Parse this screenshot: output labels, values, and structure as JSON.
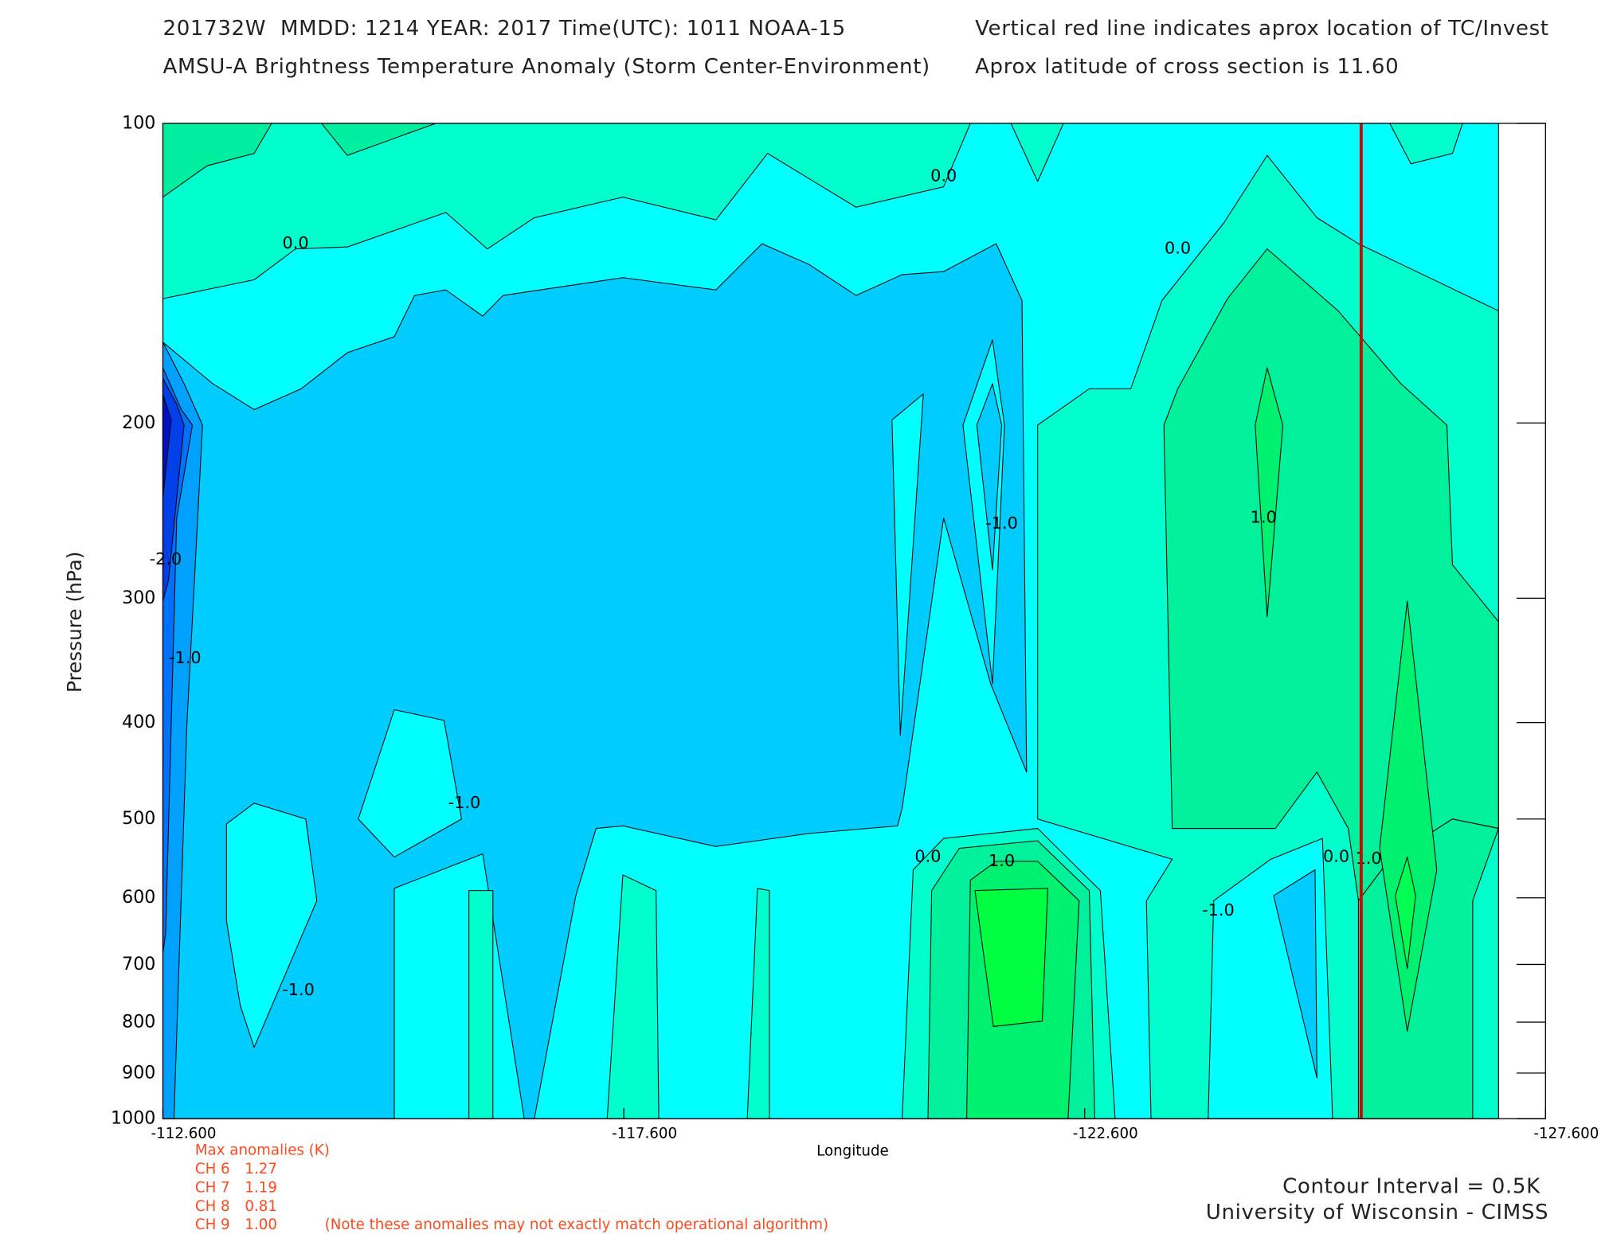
{
  "chart_data": {
    "type": "contour",
    "title_lines": [
      "201732W  MMDD: 1214 YEAR: 2017 Time(UTC): 1011 NOAA-15",
      "AMSU-A Brightness Temperature Anomaly (Storm Center-Environment)"
    ],
    "notes": [
      "Vertical red line indicates aprox location of TC/Invest",
      "Aprox latitude of cross section is 11.60"
    ],
    "x_label": "Longitude",
    "y_label": "Pressure (hPa)",
    "xlim": [
      -112.6,
      -127.6
    ],
    "xticks": [
      {
        "value": -112.6,
        "label": "-112.600"
      },
      {
        "value": -117.6,
        "label": "-117.600"
      },
      {
        "value": -122.6,
        "label": "-122.600"
      },
      {
        "value": -127.6,
        "label": "-127.600"
      }
    ],
    "ylim": [
      1000,
      100
    ],
    "log_y": true,
    "yticks": [
      100,
      200,
      300,
      400,
      500,
      600,
      700,
      800,
      900,
      1000
    ],
    "grid": false,
    "storm_line": {
      "lon": -125.6,
      "color": "#dd0000"
    },
    "regions": [
      {
        "value": -0.5,
        "color": "#00ffff",
        "lon": [
          -112.6,
          -127.09,
          -127.09,
          -112.6
        ],
        "p": [
          100,
          100,
          1000,
          1000
        ]
      },
      {
        "value": 0.0,
        "color": "#00ffcc",
        "lon": [
          -112.6,
          -121.36,
          -121.07,
          -120.12,
          -119.16,
          -118.6,
          -117.59,
          -116.63,
          -116.12,
          -115.67,
          -114.6,
          -114.04,
          -113.59,
          -112.6
        ],
        "p": [
          100,
          100,
          115.8,
          121.4,
          107.2,
          125,
          118.6,
          124.4,
          133.7,
          122.9,
          133.1,
          133.7,
          143.6,
          150
        ]
      },
      {
        "value": 0.5,
        "color": "#00eea0",
        "lon": [
          -112.6,
          -113.78,
          -113.59,
          -113.08,
          -112.6
        ],
        "p": [
          100,
          100,
          107.2,
          110.3,
          118.6
        ]
      },
      {
        "value": 0.5,
        "color": "#00eea0",
        "lon": [
          -114.32,
          -115.56,
          -114.6
        ],
        "p": [
          100,
          100,
          107.7
        ]
      },
      {
        "value": 0.0,
        "color": "#00ffcc",
        "lon": [
          -125.91,
          -126.7,
          -126.59,
          -126.14
        ],
        "p": [
          100,
          100,
          107.2,
          109.8
        ]
      },
      {
        "value": 0.0,
        "color": "#00ffcc",
        "lon": [
          -121.8,
          -122.09,
          -122.37
        ],
        "p": [
          100,
          114.4,
          100
        ]
      },
      {
        "value": 0.0,
        "color": "#00ffcc",
        "lon": [
          -122.09,
          -122.65,
          -123.1,
          -123.44,
          -124.11,
          -124.58,
          -125.12,
          -125.57,
          -127.09,
          -127.09,
          -123.32,
          -123.27,
          -123.55,
          -122.09
        ],
        "p": [
          201,
          184.8,
          184.8,
          150.6,
          125.9,
          107.7,
          124.4,
          132.1,
          154.3,
          1000,
          1000,
          604,
          548.7,
          500
        ]
      },
      {
        "value": 0.5,
        "color": "#00f09c",
        "lon": [
          -123.46,
          -123.61,
          -124.15,
          -124.58,
          -125.35,
          -126.03,
          -126.53,
          -126.59,
          -127.09,
          -127.09,
          -126.59,
          -125.91,
          -125.57,
          -125.46,
          -125.12,
          -124.67,
          -124.11,
          -123.55
        ],
        "p": [
          201,
          184.8,
          150,
          133.7,
          154.3,
          182.6,
          201,
          277.7,
          316.8,
          511,
          500,
          548.7,
          604,
          511,
          448.6,
          511,
          511,
          511
        ]
      },
      {
        "value": 0.5,
        "color": "#00f09c",
        "lon": [
          -125.57,
          -125.57,
          -125.91,
          -126.59,
          -127.09,
          -126.81,
          -126.81
        ],
        "p": [
          1000,
          604,
          548.7,
          500,
          511,
          604,
          1000
        ]
      },
      {
        "value": 1.0,
        "color": "#00f070",
        "lon": [
          -124.45,
          -124.58,
          -124.75,
          -124.58
        ],
        "p": [
          201,
          176,
          201,
          313.2
        ]
      },
      {
        "value": 1.0,
        "color": "#00f070",
        "lon": [
          -125.8,
          -126.1,
          -126.42,
          -126.1
        ],
        "p": [
          535,
          302,
          562.3,
          817
        ]
      },
      {
        "value": 1.5,
        "color": "#00ff50",
        "lon": [
          -125.97,
          -126.1,
          -126.19,
          -126.1
        ],
        "p": [
          597,
          546,
          597,
          707
        ]
      },
      {
        "value": 0.0,
        "color": "#00ffcc",
        "lon": [
          -120.62,
          -120.74,
          -121.07,
          -122.09,
          -122.77,
          -122.93
        ],
        "p": [
          1000,
          562.3,
          523,
          511,
          590,
          1000
        ]
      },
      {
        "value": 0.5,
        "color": "#00f09c",
        "lon": [
          -120.9,
          -120.94,
          -121.24,
          -122.09,
          -122.65,
          -122.71
        ],
        "p": [
          1000,
          590,
          535,
          525.7,
          590,
          1000
        ]
      },
      {
        "value": 1.0,
        "color": "#00f070",
        "lon": [
          -121.32,
          -121.36,
          -121.64,
          -122.09,
          -122.54,
          -122.42
        ],
        "p": [
          1000,
          576,
          551.4,
          551.4,
          604,
          1000
        ]
      },
      {
        "value": 1.5,
        "color": "#00ff40",
        "lon": [
          -121.41,
          -122.2,
          -122.14,
          -121.61
        ],
        "p": [
          590,
          587,
          798,
          808
        ]
      },
      {
        "value": -0.5,
        "color": "#00ffff",
        "lon": [
          -123.94,
          -124.0,
          -124.62,
          -125.18,
          -125.29
        ],
        "p": [
          1000,
          604,
          548.7,
          523,
          1000
        ]
      },
      {
        "value": -1.0,
        "color": "#00ccff",
        "lon": [
          -124.65,
          -125.1,
          -125.12
        ],
        "p": [
          597,
          562.3,
          910
        ]
      },
      {
        "value": -1.0,
        "color": "#00ccff",
        "lon": [
          -112.6,
          -113.14,
          -113.59,
          -114.1,
          -114.6,
          -115.11,
          -115.33,
          -115.67,
          -116.07,
          -116.29,
          -117.59,
          -118.6,
          -119.1,
          -119.61,
          -120.12,
          -120.62,
          -121.07,
          -121.64,
          -121.92,
          -121.97,
          -121.58,
          -121.07,
          -120.62,
          -120.57,
          -119.61,
          -118.6,
          -117.59,
          -117.3,
          -117.08,
          -116.63,
          -116.52,
          -116.07,
          -115.11,
          -115.11,
          -112.6
        ],
        "p": [
          165.9,
          182.6,
          193.9,
          184.8,
          170,
          163.8,
          148.9,
          147,
          156.2,
          148.9,
          142.9,
          147,
          132.1,
          138.6,
          148.9,
          141.9,
          140.9,
          132.1,
          150.6,
          448.6,
          365.6,
          249.2,
          487.8,
          508,
          517,
          532.8,
          508,
          511,
          597,
          1000,
          1000,
          542,
          587,
          1000,
          1000
        ]
      },
      {
        "value": -0.5,
        "color": "#00ffff",
        "lon": [
          -114.72,
          -115.11,
          -115.65,
          -115.84,
          -115.11
        ],
        "p": [
          500,
          388.3,
          398,
          500,
          546
        ]
      },
      {
        "value": -0.5,
        "color": "#00ffff",
        "lon": [
          -113.29,
          -113.59,
          -114.15,
          -114.27,
          -113.59,
          -113.44,
          -113.29
        ],
        "p": [
          505.7,
          482,
          500,
          604,
          848,
          770,
          633
        ]
      },
      {
        "value": -0.5,
        "color": "#00ffff",
        "lon": [
          -120.51,
          -120.85,
          -120.6
        ],
        "p": [
          198.6,
          187,
          412
        ]
      },
      {
        "value": -0.5,
        "color": "#00ffff",
        "lon": [
          -121.28,
          -121.6,
          -121.73,
          -121.6
        ],
        "p": [
          201,
          165,
          201,
          365.6
        ]
      },
      {
        "value": -1.0,
        "color": "#00ccff",
        "lon": [
          -121.43,
          -121.6,
          -121.7,
          -121.6
        ],
        "p": [
          201,
          182.6,
          201,
          281
        ]
      },
      {
        "value": 0.0,
        "color": "#00ffcc",
        "lon": [
          -115.92,
          -115.92,
          -116.18,
          -116.18
        ],
        "p": [
          1000,
          590,
          590,
          1000
        ]
      },
      {
        "value": 0.0,
        "color": "#00ffcc",
        "lon": [
          -117.42,
          -117.59,
          -117.95,
          -117.98
        ],
        "p": [
          1000,
          569,
          590,
          1000
        ]
      },
      {
        "value": 0.0,
        "color": "#00ffcc",
        "lon": [
          -118.94,
          -119.05,
          -119.18,
          -119.18
        ],
        "p": [
          1000,
          587,
          590,
          1000
        ]
      },
      {
        "value": -1.5,
        "color": "#00a0ff",
        "lon": [
          -112.6,
          -112.83,
          -113.03,
          -112.86,
          -112.72,
          -112.6
        ],
        "p": [
          165.9,
          182.6,
          201,
          402.6,
          1000,
          1000
        ]
      },
      {
        "value": -2.0,
        "color": "#0070ff",
        "lon": [
          -112.6,
          -112.8,
          -112.92,
          -112.75,
          -112.63,
          -112.6
        ],
        "p": [
          176,
          193.9,
          201,
          249.2,
          651,
          682
        ]
      },
      {
        "value": -2.5,
        "color": "#0040e8",
        "lon": [
          -112.6,
          -112.75,
          -112.83,
          -112.66,
          -112.6
        ],
        "p": [
          180.4,
          191.5,
          201,
          288,
          302
        ]
      },
      {
        "value": -3.0,
        "color": "#0010c8",
        "lon": [
          -112.6,
          -112.69,
          -112.6
        ],
        "p": [
          187,
          198.6,
          237.7
        ]
      }
    ],
    "contour_labels": [
      {
        "value": 0,
        "label": "0.0",
        "lon": -114.04,
        "p": 132.1
      },
      {
        "value": 0,
        "label": "0.0",
        "lon": -121.07,
        "p": 113
      },
      {
        "value": 0,
        "label": "0.0",
        "lon": -123.61,
        "p": 133.7
      },
      {
        "value": -1,
        "label": "-1.0",
        "lon": -121.7,
        "p": 252.5
      },
      {
        "value": -1,
        "label": "-1.0",
        "lon": -112.84,
        "p": 344.7
      },
      {
        "value": -2,
        "label": "-2.0",
        "lon": -112.63,
        "p": 274.5
      },
      {
        "value": -1,
        "label": "-1.0",
        "lon": -115.87,
        "p": 482
      },
      {
        "value": -1,
        "label": "-1.0",
        "lon": -114.07,
        "p": 743
      },
      {
        "value": 0,
        "label": "0.0",
        "lon": -120.9,
        "p": 546
      },
      {
        "value": 1,
        "label": "1.0",
        "lon": -121.7,
        "p": 551.4
      },
      {
        "value": 1,
        "label": "1.0",
        "lon": -124.54,
        "p": 249.2
      },
      {
        "value": -1,
        "label": "-1.0",
        "lon": -124.05,
        "p": 618.5
      },
      {
        "value": 0,
        "label": "0.0",
        "lon": -125.33,
        "p": 546
      },
      {
        "value": 1,
        "label": "1.0",
        "lon": -125.68,
        "p": 548.7
      }
    ],
    "max_anomalies": {
      "title": "Max anomalies (K)",
      "rows": [
        {
          "channel": "CH 6",
          "value": 1.27
        },
        {
          "channel": "CH 7",
          "value": 1.19
        },
        {
          "channel": "CH 8",
          "value": 0.81
        },
        {
          "channel": "CH 9",
          "value": {
            "value": 1,
            "label": "1.00"
          }
        }
      ],
      "note": "(Note these anomalies may not exactly match operational algorithm)"
    },
    "footer": [
      "Contour Interval = 0.5K",
      "University of Wisconsin - CIMSS"
    ]
  }
}
